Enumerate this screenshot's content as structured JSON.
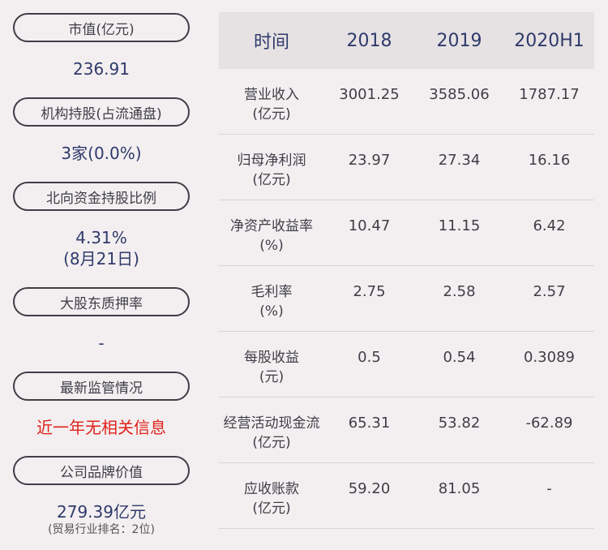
{
  "left": {
    "items": [
      {
        "label": "市值(亿元)",
        "value": "236.91"
      },
      {
        "label": "机构持股(占流通盘)",
        "value": "3家(0.0%)"
      },
      {
        "label": "北向资金持股比例",
        "value": "4.31%",
        "value2": "(8月21日)"
      },
      {
        "label": "大股东质押率",
        "value": "-"
      },
      {
        "label": "最新监管情况",
        "value": "近一年无相关信息"
      },
      {
        "label": "公司品牌价值",
        "value": "279.39亿元",
        "note": "(贸易行业排名：2位)"
      }
    ]
  },
  "table": {
    "headers": [
      "时间",
      "2018",
      "2019",
      "2020H1"
    ],
    "rows": [
      {
        "label": "营业收入",
        "unit": "(亿元)",
        "values": [
          "3001.25",
          "3585.06",
          "1787.17"
        ]
      },
      {
        "label": "归母净利润",
        "unit": "(亿元)",
        "values": [
          "23.97",
          "27.34",
          "16.16"
        ]
      },
      {
        "label": "净资产收益率",
        "unit": "(%)",
        "values": [
          "10.47",
          "11.15",
          "6.42"
        ]
      },
      {
        "label": "毛利率",
        "unit": "(%)",
        "values": [
          "2.75",
          "2.58",
          "2.57"
        ]
      },
      {
        "label": "每股收益",
        "unit": "(元)",
        "values": [
          "0.5",
          "0.54",
          "0.3089"
        ]
      },
      {
        "label": "经营活动现金流",
        "unit": "(亿元)",
        "values": [
          "65.31",
          "53.82",
          "-62.89"
        ]
      },
      {
        "label": "应收账款",
        "unit": "(亿元)",
        "values": [
          "59.20",
          "81.05",
          "-"
        ]
      }
    ]
  },
  "colors": {
    "accent": "#2f3a6b",
    "alert": "#e0221c",
    "background": "#f3eff0",
    "header_bg": "#e6e2e3"
  }
}
